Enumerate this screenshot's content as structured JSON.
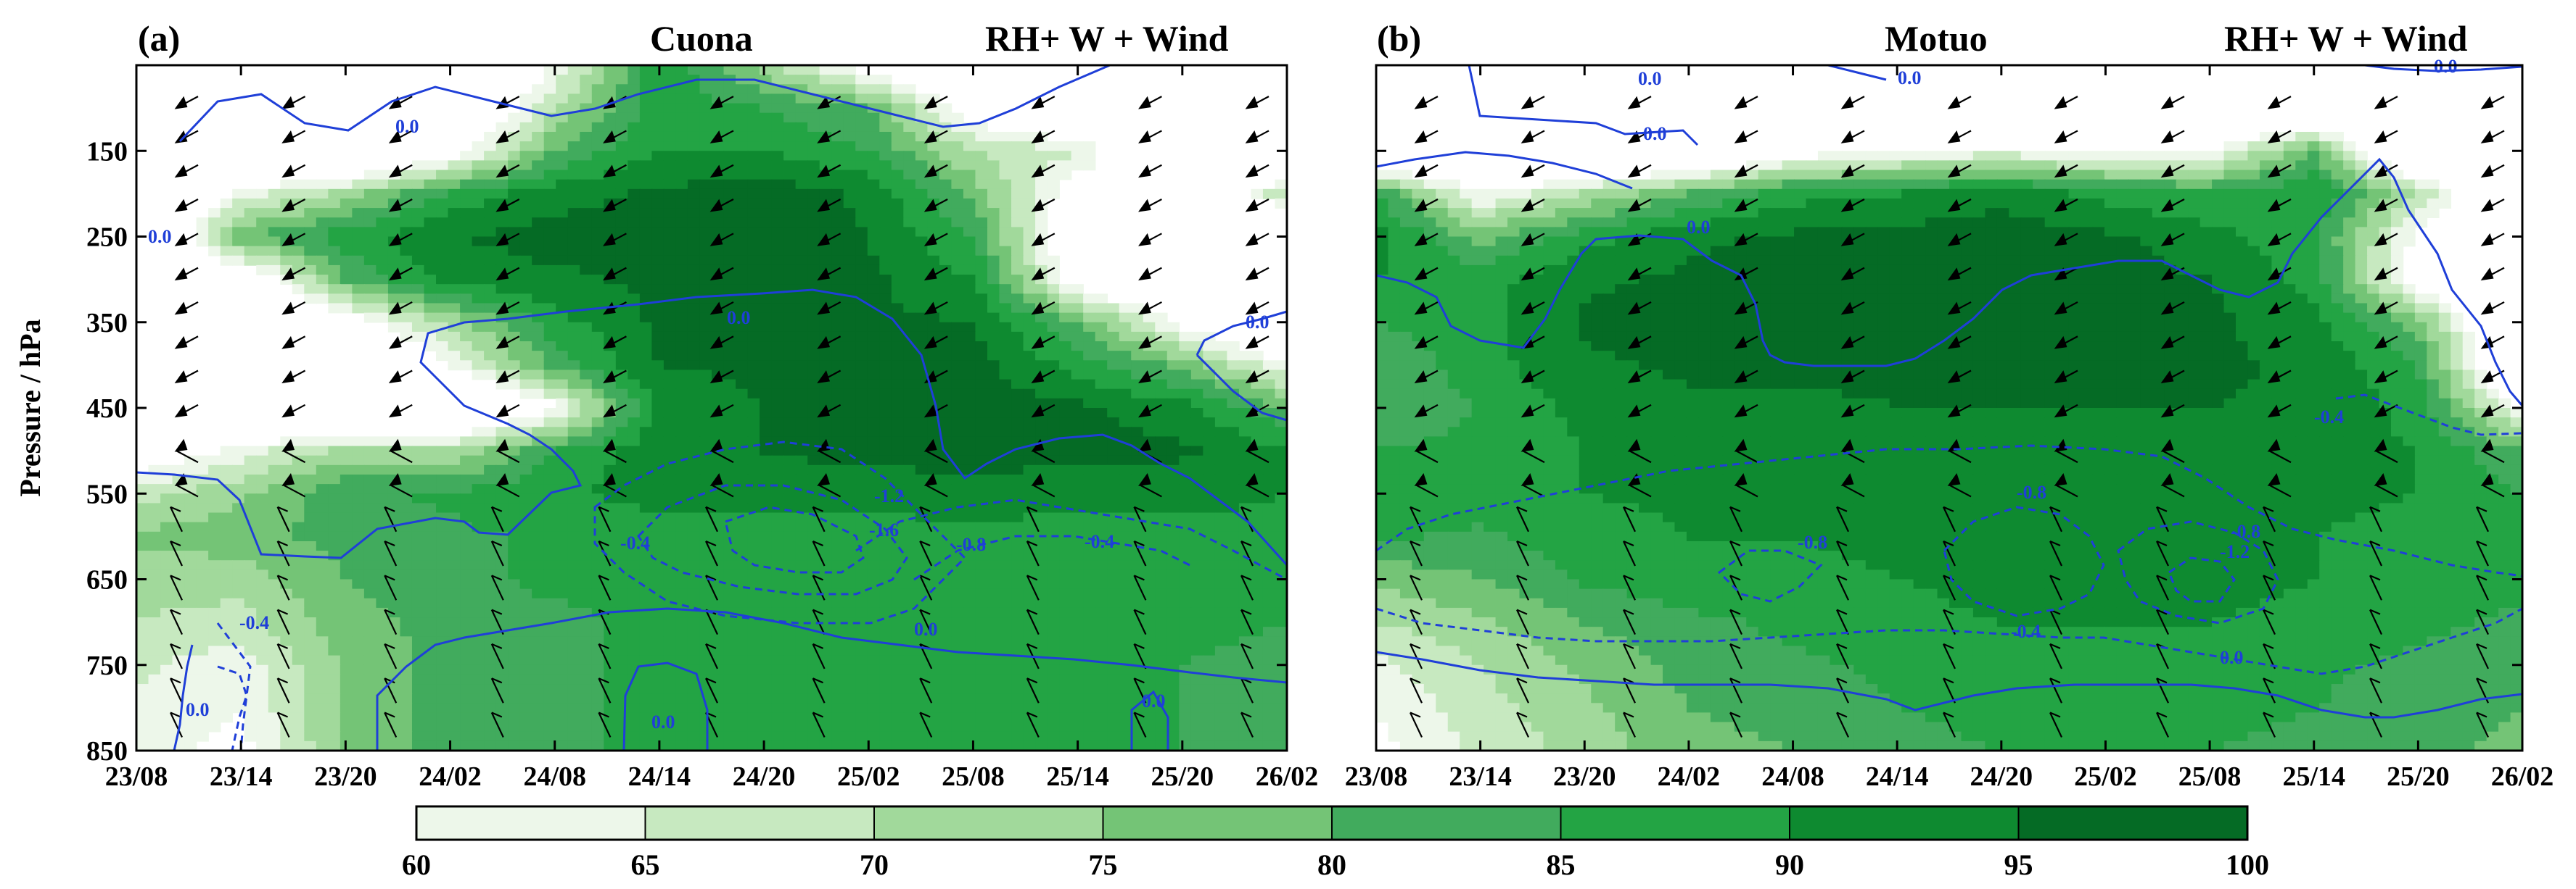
{
  "chart_data": [
    {
      "type": "contour",
      "panel_tag": "(a)",
      "station": "Cuona",
      "title": "RH+ W + Wind",
      "ylabel": "Pressure / hPa",
      "x_tick_labels": [
        "23/08",
        "23/14",
        "23/20",
        "24/02",
        "24/08",
        "24/14",
        "24/20",
        "25/02",
        "25/08",
        "25/14",
        "25/20",
        "26/02"
      ],
      "y_tick_labels": [
        "150",
        "250",
        "350",
        "450",
        "550",
        "650",
        "750",
        "850"
      ],
      "y_ticks": [
        150,
        250,
        350,
        450,
        550,
        650,
        750,
        850
      ],
      "ylim": [
        850,
        50
      ],
      "rh_field": {
        "x": [
          0,
          1,
          2,
          3,
          4,
          5,
          6,
          7,
          8,
          9,
          10,
          11
        ],
        "y": [
          50,
          100,
          150,
          200,
          250,
          300,
          350,
          400,
          450,
          500,
          550,
          600,
          650,
          700,
          750,
          800,
          850
        ],
        "values": [
          [
            40,
            40,
            40,
            40,
            60,
            90,
            72,
            55,
            40,
            40,
            40,
            40
          ],
          [
            40,
            40,
            40,
            40,
            70,
            88,
            85,
            80,
            55,
            40,
            40,
            40
          ],
          [
            40,
            40,
            40,
            55,
            80,
            90,
            90,
            85,
            70,
            66,
            40,
            40
          ],
          [
            40,
            62,
            72,
            86,
            93,
            96,
            98,
            94,
            78,
            55,
            45,
            70
          ],
          [
            40,
            80,
            88,
            95,
            97,
            97,
            98,
            95,
            85,
            50,
            40,
            40
          ],
          [
            40,
            50,
            80,
            92,
            94,
            96,
            97,
            96,
            90,
            55,
            40,
            40
          ],
          [
            40,
            40,
            55,
            72,
            88,
            96,
            96,
            96,
            95,
            80,
            58,
            40
          ],
          [
            40,
            40,
            40,
            60,
            82,
            95,
            96,
            96,
            97,
            88,
            78,
            60
          ],
          [
            40,
            40,
            40,
            42,
            58,
            92,
            95,
            97,
            97,
            96,
            92,
            80
          ],
          [
            52,
            62,
            72,
            70,
            85,
            94,
            95,
            97,
            97,
            97,
            96,
            90
          ],
          [
            68,
            74,
            84,
            86,
            89,
            92,
            92,
            92,
            93,
            92,
            92,
            90
          ],
          [
            76,
            78,
            82,
            84,
            86,
            87,
            88,
            88,
            88,
            88,
            88,
            88
          ],
          [
            72,
            72,
            80,
            84,
            86,
            86,
            86,
            87,
            87,
            87,
            86,
            85
          ],
          [
            70,
            68,
            78,
            82,
            84,
            86,
            86,
            86,
            86,
            86,
            86,
            85
          ],
          [
            66,
            62,
            76,
            82,
            84,
            86,
            86,
            86,
            86,
            86,
            85,
            84
          ],
          [
            64,
            60,
            76,
            82,
            84,
            86,
            86,
            86,
            86,
            86,
            85,
            84
          ],
          [
            62,
            58,
            76,
            82,
            84,
            86,
            86,
            86,
            86,
            86,
            85,
            84
          ]
        ]
      },
      "w_contour_labels": [
        "0.0",
        "0.0",
        "0.0",
        "0.0",
        "0.0",
        "0.0",
        "0.0",
        "0.0",
        "-0.4",
        "-0.4",
        "-0.8",
        "-1.2",
        "-1.6",
        "-0.4",
        "0.0",
        "0.0",
        "-0.4"
      ],
      "colorbar": {
        "levels": [
          60,
          65,
          70,
          75,
          80,
          85,
          90,
          95,
          100
        ],
        "tick_labels": [
          "60",
          "65",
          "70",
          "75",
          "80",
          "85",
          "90",
          "95",
          "100"
        ],
        "colors": [
          "#edf7ea",
          "#c7e9c0",
          "#a1d99b",
          "#74c476",
          "#41ab5d",
          "#23a444",
          "#0e8a30",
          "#056b25",
          "#03481a"
        ]
      }
    },
    {
      "type": "contour",
      "panel_tag": "(b)",
      "station": "Motuo",
      "title": "RH+ W + Wind",
      "ylabel": "",
      "x_tick_labels": [
        "23/08",
        "23/14",
        "23/20",
        "24/02",
        "24/08",
        "24/14",
        "24/20",
        "25/02",
        "25/08",
        "25/14",
        "25/20",
        "26/02"
      ],
      "ylim": [
        850,
        50
      ],
      "rh_field": {
        "x": [
          0,
          1,
          2,
          3,
          4,
          5,
          6,
          7,
          8,
          9,
          10,
          11
        ],
        "y": [
          50,
          100,
          150,
          200,
          250,
          300,
          350,
          400,
          450,
          500,
          550,
          600,
          650,
          700,
          750,
          800,
          850
        ],
        "values": [
          [
            40,
            40,
            40,
            40,
            40,
            40,
            40,
            40,
            60,
            40,
            40,
            40
          ],
          [
            40,
            40,
            40,
            40,
            40,
            40,
            40,
            40,
            40,
            40,
            40,
            40
          ],
          [
            40,
            40,
            40,
            40,
            55,
            60,
            62,
            58,
            60,
            80,
            40,
            40
          ],
          [
            85,
            60,
            70,
            80,
            88,
            90,
            94,
            88,
            85,
            90,
            70,
            40
          ],
          [
            92,
            78,
            88,
            94,
            96,
            97,
            97,
            96,
            92,
            86,
            58,
            40
          ],
          [
            90,
            88,
            94,
            96,
            97,
            97,
            97,
            97,
            95,
            88,
            55,
            40
          ],
          [
            85,
            88,
            96,
            97,
            97,
            97,
            97,
            97,
            96,
            92,
            78,
            40
          ],
          [
            80,
            88,
            94,
            96,
            96,
            96,
            96,
            96,
            96,
            94,
            85,
            40
          ],
          [
            82,
            85,
            92,
            94,
            94,
            95,
            95,
            95,
            95,
            94,
            88,
            60
          ],
          [
            85,
            86,
            90,
            92,
            92,
            93,
            94,
            94,
            94,
            93,
            90,
            80
          ],
          [
            90,
            88,
            90,
            91,
            92,
            92,
            93,
            93,
            93,
            92,
            90,
            85
          ],
          [
            86,
            84,
            88,
            90,
            90,
            92,
            93,
            92,
            92,
            90,
            88,
            86
          ],
          [
            76,
            80,
            86,
            88,
            88,
            90,
            92,
            92,
            92,
            90,
            88,
            86
          ],
          [
            70,
            74,
            80,
            84,
            86,
            88,
            90,
            90,
            90,
            88,
            86,
            84
          ],
          [
            64,
            70,
            76,
            82,
            84,
            86,
            88,
            88,
            88,
            86,
            84,
            82
          ],
          [
            60,
            68,
            74,
            80,
            82,
            85,
            86,
            86,
            86,
            85,
            83,
            80
          ],
          [
            58,
            66,
            72,
            78,
            80,
            84,
            85,
            85,
            85,
            84,
            82,
            78
          ]
        ]
      },
      "w_contour_labels": [
        "0.0",
        "0.0",
        "0.0",
        "0.0",
        "-0.4",
        "-0.4",
        "-0.8",
        "-0.8",
        "-0.8",
        "-1.2",
        "-0.4",
        "0.0"
      ]
    }
  ]
}
